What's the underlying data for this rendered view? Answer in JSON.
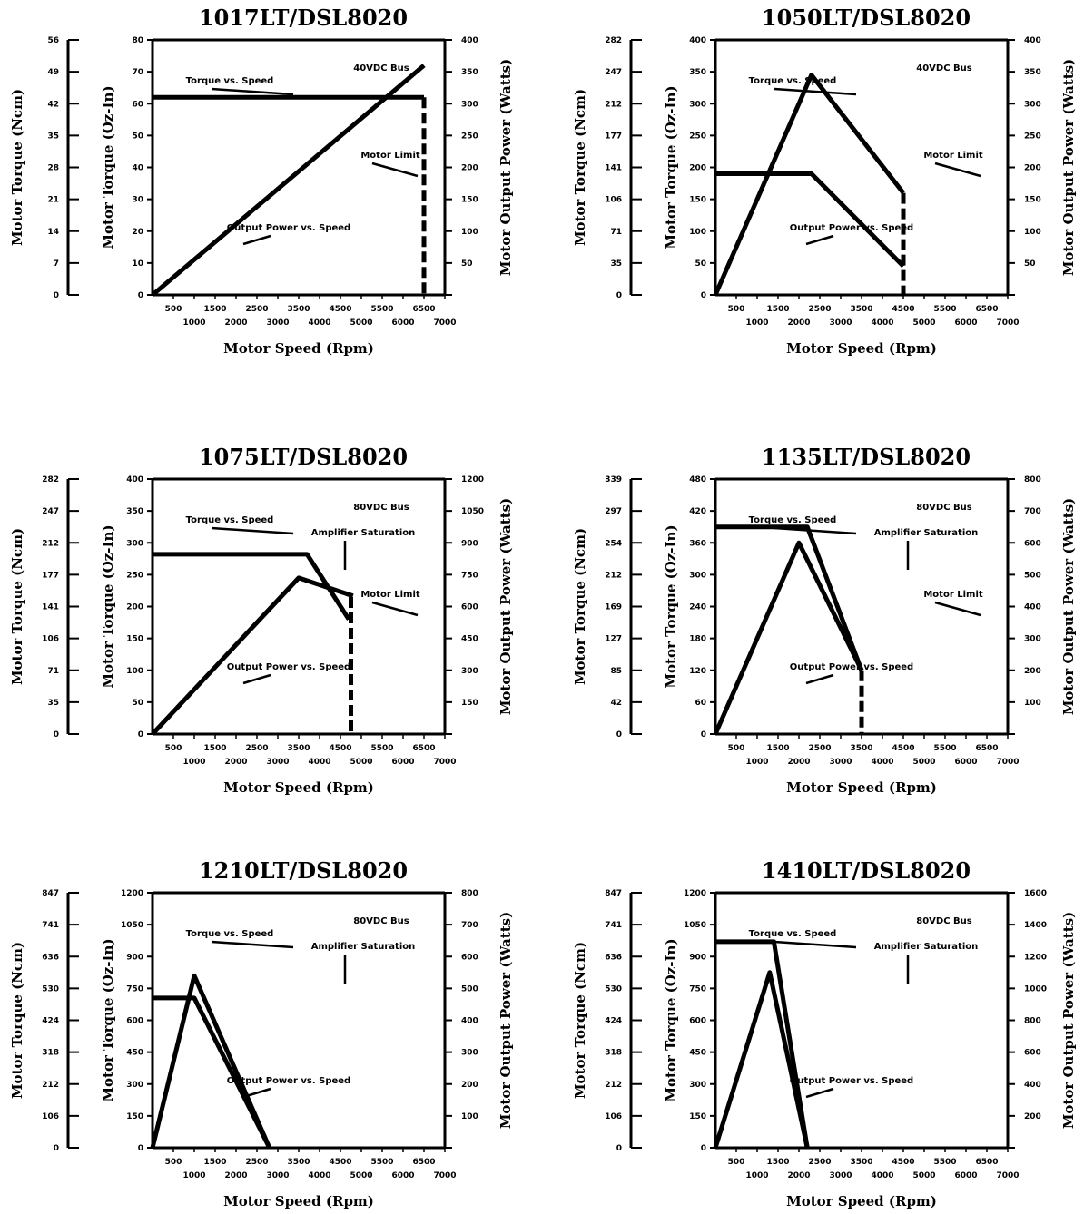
{
  "chart_data": [
    {
      "type": "line",
      "title": "1017LT/DSL8020",
      "bus_label": "40VDC Bus",
      "xlabel": "Motor Speed (Rpm)",
      "ylabel_ncm": "Motor Torque (Ncm)",
      "ylabel_ozin": "Motor Torque (Oz-In)",
      "ylabel_power": "Motor Output Power (Watts)",
      "x_ticks_upper": [
        "500",
        "1500",
        "2500",
        "3500",
        "4500",
        "5500",
        "6500"
      ],
      "x_ticks_lower": [
        "1000",
        "2000",
        "3000",
        "4000",
        "5000",
        "6000",
        "7000"
      ],
      "xlim": [
        0,
        7000
      ],
      "ncm_ticks": [
        "0",
        "7",
        "14",
        "21",
        "28",
        "35",
        "42",
        "49",
        "56"
      ],
      "ozin_ticks": [
        "0",
        "10",
        "20",
        "30",
        "40",
        "50",
        "60",
        "70",
        "80"
      ],
      "ozin_lim": [
        0,
        80
      ],
      "power_ticks": [
        "",
        "50",
        "100",
        "150",
        "200",
        "250",
        "300",
        "350",
        "400"
      ],
      "power_lim": [
        0,
        400
      ],
      "torque": {
        "name": "Torque vs. Speed",
        "x": [
          0,
          6500
        ],
        "y": [
          62,
          62
        ]
      },
      "power": {
        "name": "Output Power vs. Speed",
        "x": [
          0,
          6500
        ],
        "y": [
          0,
          360
        ]
      },
      "motor_limit": {
        "x": 6500,
        "y_top": 62
      },
      "annotations": [
        "Torque vs. Speed",
        "Output Power vs. Speed",
        "Motor Limit"
      ]
    },
    {
      "type": "line",
      "title": "1050LT/DSL8020",
      "bus_label": "40VDC Bus",
      "xlabel": "Motor Speed (Rpm)",
      "ylabel_ncm": "Motor Torque (Ncm)",
      "ylabel_ozin": "Motor Torque (Oz-In)",
      "ylabel_power": "Motor Output Power (Watts)",
      "x_ticks_upper": [
        "500",
        "1500",
        "2500",
        "3500",
        "4500",
        "5500",
        "6500"
      ],
      "x_ticks_lower": [
        "1000",
        "2000",
        "3000",
        "4000",
        "5000",
        "6000",
        "7000"
      ],
      "xlim": [
        0,
        7000
      ],
      "ncm_ticks": [
        "0",
        "35",
        "71",
        "106",
        "141",
        "177",
        "212",
        "247",
        "282"
      ],
      "ozin_ticks": [
        "0",
        "50",
        "100",
        "150",
        "200",
        "250",
        "300",
        "350",
        "400"
      ],
      "ozin_lim": [
        0,
        400
      ],
      "power_ticks": [
        "",
        "50",
        "100",
        "150",
        "200",
        "250",
        "300",
        "350",
        "400"
      ],
      "power_lim": [
        0,
        400
      ],
      "torque": {
        "name": "Torque vs. Speed",
        "x": [
          0,
          2300,
          4500
        ],
        "y": [
          190,
          190,
          45
        ]
      },
      "power": {
        "name": "Output Power vs. Speed",
        "x": [
          0,
          2300,
          4500
        ],
        "y": [
          0,
          345,
          160
        ]
      },
      "motor_limit": {
        "x": 4500,
        "y_top": 160
      },
      "annotations": [
        "Torque vs. Speed",
        "Output Power vs. Speed",
        "Motor Limit"
      ]
    },
    {
      "type": "line",
      "title": "1075LT/DSL8020",
      "bus_label": "80VDC Bus",
      "xlabel": "Motor Speed (Rpm)",
      "ylabel_ncm": "Motor Torque (Ncm)",
      "ylabel_ozin": "Motor Torque (Oz-In)",
      "ylabel_power": "Motor Output Power (Watts)",
      "x_ticks_upper": [
        "500",
        "1500",
        "2500",
        "3500",
        "4500",
        "5500",
        "6500"
      ],
      "x_ticks_lower": [
        "1000",
        "2000",
        "3000",
        "4000",
        "5000",
        "6000",
        "7000"
      ],
      "xlim": [
        0,
        7000
      ],
      "ncm_ticks": [
        "0",
        "35",
        "71",
        "106",
        "141",
        "177",
        "212",
        "247",
        "282"
      ],
      "ozin_ticks": [
        "0",
        "50",
        "100",
        "150",
        "200",
        "250",
        "300",
        "350",
        "400"
      ],
      "ozin_lim": [
        0,
        400
      ],
      "power_ticks": [
        "",
        "150",
        "300",
        "450",
        "600",
        "750",
        "900",
        "1050",
        "1200"
      ],
      "power_lim": [
        0,
        1200
      ],
      "torque": {
        "name": "Torque vs. Speed",
        "x": [
          0,
          3700,
          4700
        ],
        "y": [
          282,
          282,
          180
        ]
      },
      "power": {
        "name": "Output Power vs. Speed",
        "x": [
          0,
          3500,
          4800
        ],
        "y": [
          0,
          735,
          650
        ]
      },
      "motor_limit": {
        "x": 4750,
        "y_top": 215
      },
      "annotations": [
        "Torque vs. Speed",
        "Amplifier Saturation",
        "Output Power vs. Speed",
        "Motor Limit"
      ]
    },
    {
      "type": "line",
      "title": "1135LT/DSL8020",
      "bus_label": "80VDC Bus",
      "xlabel": "Motor Speed (Rpm)",
      "ylabel_ncm": "Motor Torque (Ncm)",
      "ylabel_ozin": "Motor Torque (Oz-In)",
      "ylabel_power": "Motor Output Power (Watts)",
      "x_ticks_upper": [
        "500",
        "1500",
        "2500",
        "3500",
        "4500",
        "5500",
        "6500"
      ],
      "x_ticks_lower": [
        "1000",
        "2000",
        "3000",
        "4000",
        "5000",
        "6000",
        "7000"
      ],
      "xlim": [
        0,
        7000
      ],
      "ncm_ticks": [
        "0",
        "42",
        "85",
        "127",
        "169",
        "212",
        "254",
        "297",
        "339"
      ],
      "ozin_ticks": [
        "0",
        "60",
        "120",
        "180",
        "240",
        "300",
        "360",
        "420",
        "480"
      ],
      "ozin_lim": [
        0,
        480
      ],
      "power_ticks": [
        "",
        "100",
        "200",
        "300",
        "400",
        "500",
        "600",
        "700",
        "800"
      ],
      "power_lim": [
        0,
        800
      ],
      "torque": {
        "name": "Torque vs. Speed",
        "x": [
          0,
          2200,
          3500
        ],
        "y": [
          390,
          390,
          120
        ]
      },
      "power": {
        "name": "Output Power vs. Speed",
        "x": [
          0,
          2000,
          3500
        ],
        "y": [
          0,
          600,
          200
        ]
      },
      "motor_limit": {
        "x": 3500,
        "y_top": 120
      },
      "annotations": [
        "Torque vs. Speed",
        "Amplifier Saturation",
        "Output Power vs. Speed",
        "Motor Limit"
      ]
    },
    {
      "type": "line",
      "title": "1210LT/DSL8020",
      "bus_label": "80VDC Bus",
      "xlabel": "Motor Speed (Rpm)",
      "ylabel_ncm": "Motor Torque (Ncm)",
      "ylabel_ozin": "Motor Torque (Oz-In)",
      "ylabel_power": "Motor Output Power (Watts)",
      "x_ticks_upper": [
        "500",
        "1500",
        "2500",
        "3500",
        "4500",
        "5500",
        "6500"
      ],
      "x_ticks_lower": [
        "1000",
        "2000",
        "3000",
        "4000",
        "5000",
        "6000",
        "7000"
      ],
      "xlim": [
        0,
        7000
      ],
      "ncm_ticks": [
        "0",
        "106",
        "212",
        "318",
        "424",
        "530",
        "636",
        "741",
        "847"
      ],
      "ozin_ticks": [
        "0",
        "150",
        "300",
        "450",
        "600",
        "750",
        "900",
        "1050",
        "1200"
      ],
      "ozin_lim": [
        0,
        1200
      ],
      "power_ticks": [
        "",
        "100",
        "200",
        "300",
        "400",
        "500",
        "600",
        "700",
        "800"
      ],
      "power_lim": [
        0,
        800
      ],
      "torque": {
        "name": "Torque vs. Speed",
        "x": [
          0,
          1000,
          2800
        ],
        "y": [
          705,
          705,
          0
        ]
      },
      "power": {
        "name": "Output Power vs. Speed",
        "x": [
          0,
          1000,
          2800
        ],
        "y": [
          0,
          540,
          0
        ]
      },
      "motor_limit": null,
      "annotations": [
        "Torque vs. Speed",
        "Amplifier Saturation",
        "Output Power vs. Speed"
      ]
    },
    {
      "type": "line",
      "title": "1410LT/DSL8020",
      "bus_label": "80VDC Bus",
      "xlabel": "Motor Speed (Rpm)",
      "ylabel_ncm": "Motor Torque (Ncm)",
      "ylabel_ozin": "Motor Torque (Oz-In)",
      "ylabel_power": "Motor Output Power (Watts)",
      "x_ticks_upper": [
        "500",
        "1500",
        "2500",
        "3500",
        "4500",
        "5500",
        "6500"
      ],
      "x_ticks_lower": [
        "1000",
        "2000",
        "3000",
        "4000",
        "5000",
        "6000",
        "7000"
      ],
      "xlim": [
        0,
        7000
      ],
      "ncm_ticks": [
        "0",
        "106",
        "212",
        "318",
        "424",
        "530",
        "636",
        "741",
        "847"
      ],
      "ozin_ticks": [
        "0",
        "150",
        "300",
        "450",
        "600",
        "750",
        "900",
        "1050",
        "1200"
      ],
      "ozin_lim": [
        0,
        1200
      ],
      "power_ticks": [
        "",
        "200",
        "400",
        "600",
        "800",
        "1000",
        "1200",
        "1400",
        "1600"
      ],
      "power_lim": [
        0,
        1600
      ],
      "torque": {
        "name": "Torque vs. Speed",
        "x": [
          0,
          1400,
          2200
        ],
        "y": [
          970,
          970,
          0
        ]
      },
      "power": {
        "name": "Output Power vs. Speed",
        "x": [
          0,
          1300,
          2200
        ],
        "y": [
          0,
          1100,
          0
        ]
      },
      "motor_limit": null,
      "annotations": [
        "Torque vs. Speed",
        "Amplifier Saturation",
        "Output Power vs. Speed"
      ]
    }
  ]
}
